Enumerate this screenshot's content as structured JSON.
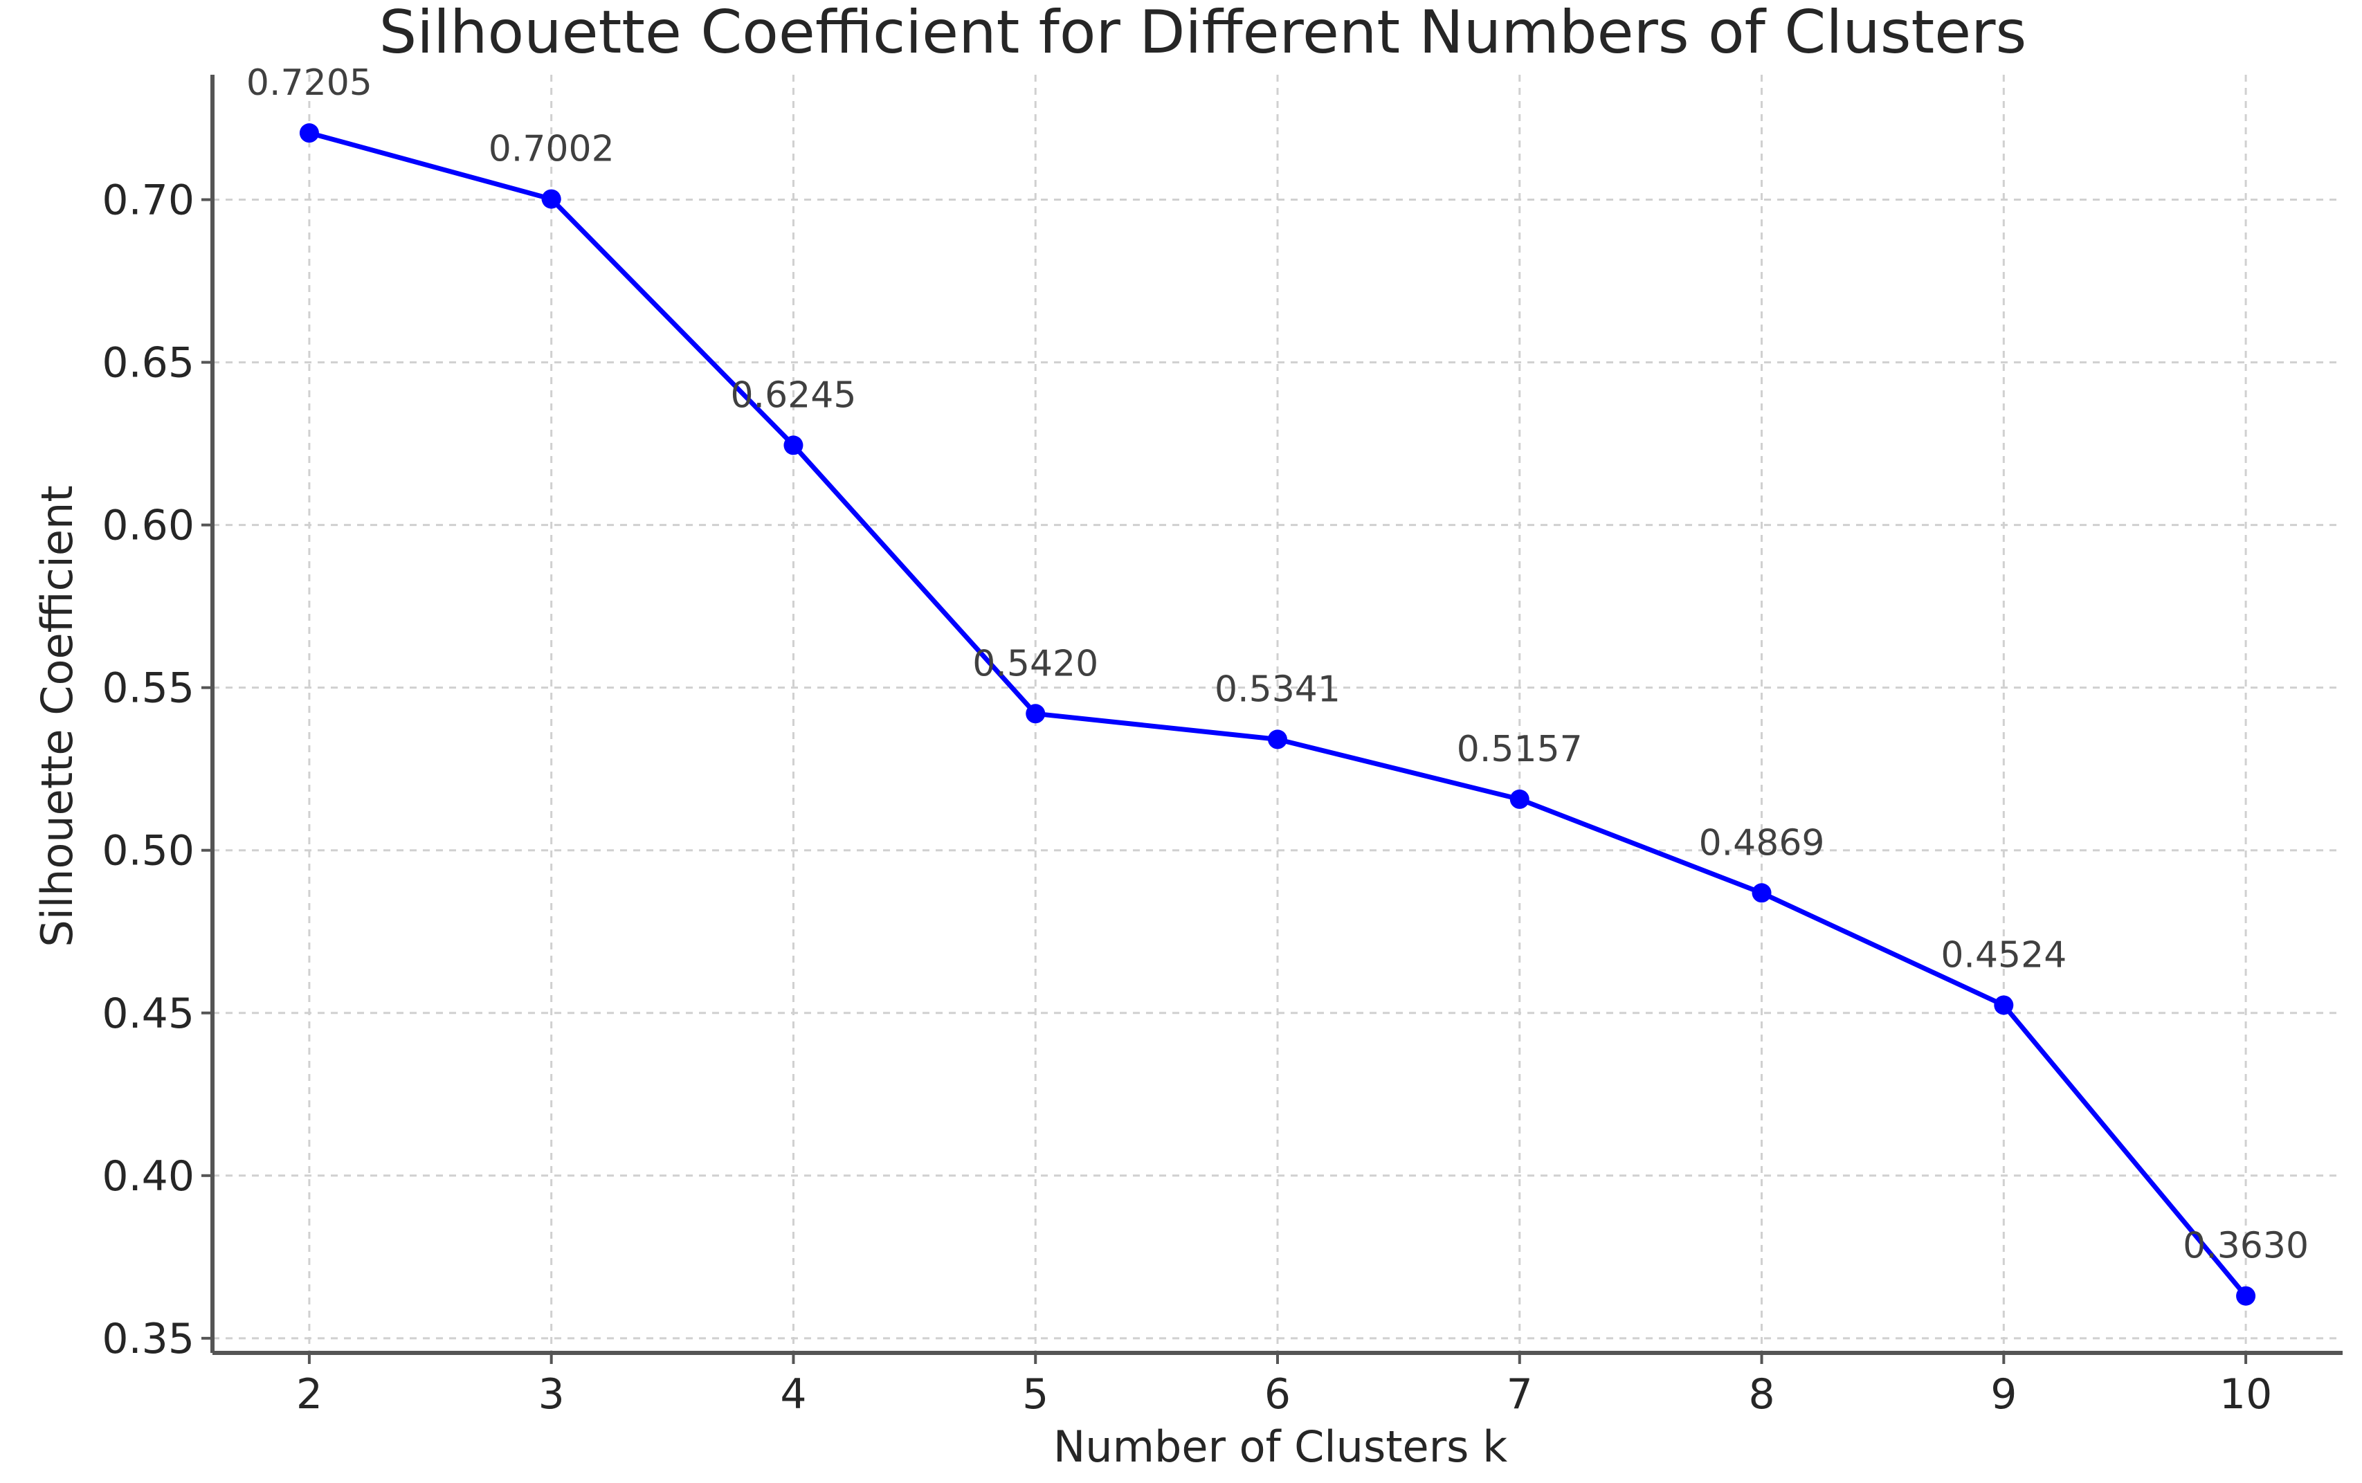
{
  "chart_data": {
    "type": "line",
    "title": "Silhouette Coefficient for Different Numbers of Clusters",
    "xlabel": "Number of Clusters k",
    "ylabel": "Silhouette Coefficient",
    "x": [
      2,
      3,
      4,
      5,
      6,
      7,
      8,
      9,
      10
    ],
    "values": [
      0.7205,
      0.7002,
      0.6245,
      0.542,
      0.5341,
      0.5157,
      0.4869,
      0.4524,
      0.363
    ],
    "data_labels": [
      "0.7205",
      "0.7002",
      "0.6245",
      "0.5420",
      "0.5341",
      "0.5157",
      "0.4869",
      "0.4524",
      "0.3630"
    ],
    "x_ticks": [
      "2",
      "3",
      "4",
      "5",
      "6",
      "7",
      "8",
      "9",
      "10"
    ],
    "y_ticks": [
      "0.35",
      "0.40",
      "0.45",
      "0.50",
      "0.55",
      "0.60",
      "0.65",
      "0.70"
    ],
    "y_tick_values": [
      0.35,
      0.4,
      0.45,
      0.5,
      0.55,
      0.6,
      0.65,
      0.7
    ],
    "xlim": [
      1.6,
      10.4
    ],
    "ylim": [
      0.3455,
      0.7384
    ],
    "grid": true,
    "grid_style": "dashed",
    "marker": "circle",
    "line_color": "#0000ff",
    "grid_color": "#d0d0d0",
    "axis_color": "#555555",
    "text_color": "#262626"
  }
}
